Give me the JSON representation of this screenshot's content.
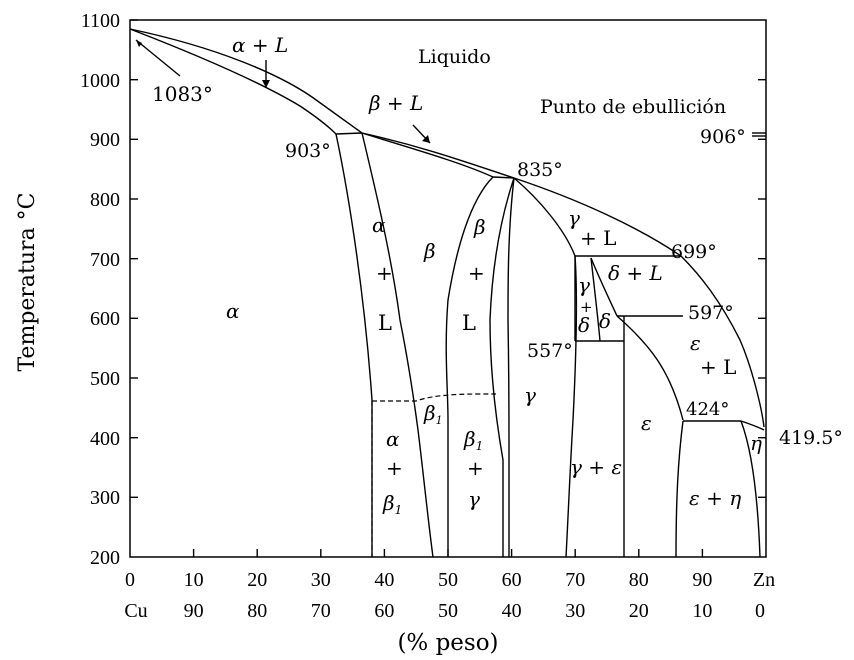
{
  "axes": {
    "ylabel": "Temperatura °C",
    "xlabel": "(% peso)",
    "y_ticks": [
      "1100",
      "1000",
      "900",
      "800",
      "700",
      "600",
      "500",
      "400",
      "300",
      "200"
    ],
    "x_ticks_zn": [
      "0",
      "10",
      "20",
      "30",
      "40",
      "50",
      "60",
      "70",
      "80",
      "90",
      "Zn"
    ],
    "x_ticks_cu": [
      "Cu",
      "90",
      "80",
      "70",
      "60",
      "50",
      "40",
      "30",
      "20",
      "10",
      "0"
    ]
  },
  "labels": {
    "alpha_L": "α + L",
    "liquid": "Liquido",
    "t1083": "1083°",
    "beta_L": "β + L",
    "boiling": "Punto de ebullición",
    "t906": "906°",
    "t903": "903°",
    "t835": "835°",
    "gamma_L_g": "γ",
    "gamma_L_l": "+ L",
    "t699": "699°",
    "delta_L": "δ + L",
    "t597": "597°",
    "t557": "557°",
    "eps_L_e": "ε",
    "eps_L_l": "+ L",
    "t424": "424°",
    "t419": "419.5°",
    "alpha": "α",
    "alpha_a": "α",
    "plus1": "+",
    "L1": "L",
    "beta_mid": "β",
    "beta_b": "β",
    "plus2": "+",
    "L2": "L",
    "gamma_mid": "γ",
    "beta1_small": "β",
    "beta1_small_sub": "1",
    "alpha_low": "α",
    "plus3": "+",
    "beta1_low": "β",
    "beta1_low_sub": "1",
    "beta1_b": "β",
    "beta1_b_sub": "1",
    "plus4": "+",
    "gamma_low": "γ",
    "gamma_eps": "γ + ε",
    "eps": "ε",
    "eps_eta": "ε + η",
    "eta": "η",
    "gd_g": "γ",
    "gd_p": "+",
    "gd_d": "δ",
    "delta_s": "δ"
  }
}
